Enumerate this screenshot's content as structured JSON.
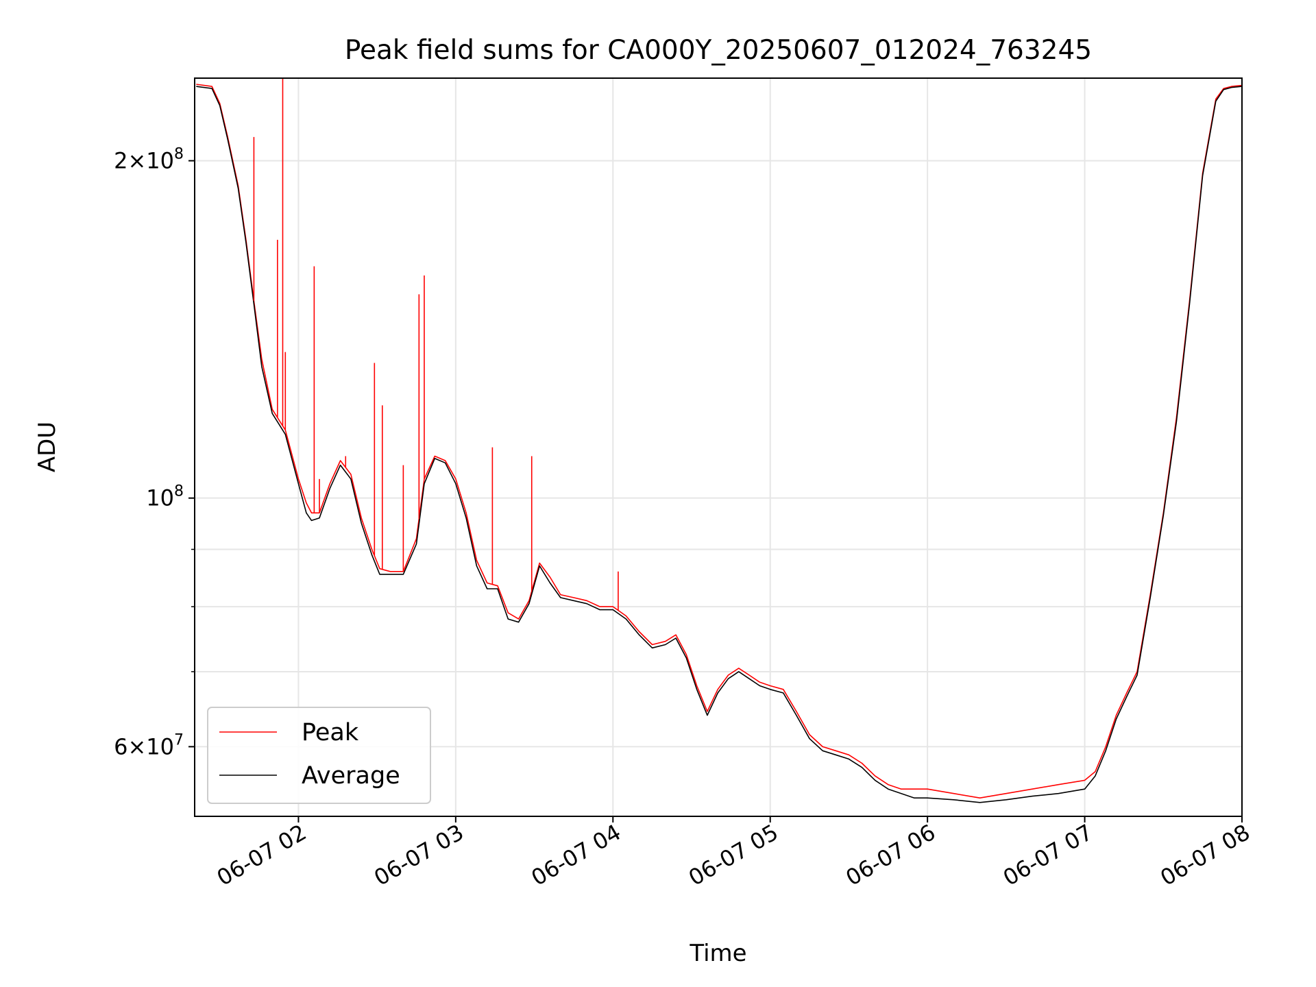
{
  "chart_data": {
    "type": "line",
    "title": "Peak field sums for CA000Y_20250607_012024_763245",
    "xlabel": "Time",
    "ylabel": "ADU",
    "yscale": "log",
    "xlim": [
      "2025-06-07 01:20:24",
      "2025-06-07 08:00:00"
    ],
    "ylim": [
      52000000,
      237000000
    ],
    "x_ticks": [
      {
        "value": "2025-06-07 02:00",
        "label": "06-07 02"
      },
      {
        "value": "2025-06-07 03:00",
        "label": "06-07 03"
      },
      {
        "value": "2025-06-07 04:00",
        "label": "06-07 04"
      },
      {
        "value": "2025-06-07 05:00",
        "label": "06-07 05"
      },
      {
        "value": "2025-06-07 06:00",
        "label": "06-07 06"
      },
      {
        "value": "2025-06-07 07:00",
        "label": "06-07 07"
      },
      {
        "value": "2025-06-07 08:00",
        "label": "06-07 08"
      }
    ],
    "y_ticks": [
      {
        "value": 200000000,
        "mant": "2",
        "exp": "8"
      },
      {
        "value": 100000000,
        "mant": "",
        "exp": "8"
      },
      {
        "value": 60000000,
        "mant": "6",
        "exp": "7"
      }
    ],
    "y_minor_ticks": [
      70000000,
      80000000,
      90000000
    ],
    "grid": true,
    "legend_position": "lower-left",
    "series": [
      {
        "name": "Peak",
        "color": "#ff0000",
        "x": [
          "2025-06-07 01:21",
          "2025-06-07 01:27",
          "2025-06-07 01:30",
          "2025-06-07 01:33",
          "2025-06-07 01:37",
          "2025-06-07 01:40",
          "2025-06-07 01:43",
          "2025-06-07 01:46",
          "2025-06-07 01:50",
          "2025-06-07 01:55",
          "2025-06-07 02:00",
          "2025-06-07 02:03",
          "2025-06-07 02:05",
          "2025-06-07 02:08",
          "2025-06-07 02:12",
          "2025-06-07 02:16",
          "2025-06-07 02:20",
          "2025-06-07 02:24",
          "2025-06-07 02:28",
          "2025-06-07 02:31",
          "2025-06-07 02:35",
          "2025-06-07 02:40",
          "2025-06-07 02:45",
          "2025-06-07 02:48",
          "2025-06-07 02:52",
          "2025-06-07 02:56",
          "2025-06-07 03:00",
          "2025-06-07 03:04",
          "2025-06-07 03:08",
          "2025-06-07 03:12",
          "2025-06-07 03:16",
          "2025-06-07 03:20",
          "2025-06-07 03:24",
          "2025-06-07 03:28",
          "2025-06-07 03:32",
          "2025-06-07 03:36",
          "2025-06-07 03:40",
          "2025-06-07 03:45",
          "2025-06-07 03:50",
          "2025-06-07 03:55",
          "2025-06-07 04:00",
          "2025-06-07 04:05",
          "2025-06-07 04:10",
          "2025-06-07 04:15",
          "2025-06-07 04:20",
          "2025-06-07 04:24",
          "2025-06-07 04:28",
          "2025-06-07 04:32",
          "2025-06-07 04:36",
          "2025-06-07 04:40",
          "2025-06-07 04:44",
          "2025-06-07 04:48",
          "2025-06-07 04:52",
          "2025-06-07 04:56",
          "2025-06-07 05:00",
          "2025-06-07 05:05",
          "2025-06-07 05:10",
          "2025-06-07 05:15",
          "2025-06-07 05:20",
          "2025-06-07 05:25",
          "2025-06-07 05:30",
          "2025-06-07 05:35",
          "2025-06-07 05:40",
          "2025-06-07 05:45",
          "2025-06-07 05:50",
          "2025-06-07 05:55",
          "2025-06-07 06:00",
          "2025-06-07 06:10",
          "2025-06-07 06:20",
          "2025-06-07 06:30",
          "2025-06-07 06:40",
          "2025-06-07 06:50",
          "2025-06-07 07:00",
          "2025-06-07 07:04",
          "2025-06-07 07:08",
          "2025-06-07 07:12",
          "2025-06-07 07:16",
          "2025-06-07 07:20",
          "2025-06-07 07:25",
          "2025-06-07 07:30",
          "2025-06-07 07:35",
          "2025-06-07 07:40",
          "2025-06-07 07:45",
          "2025-06-07 07:50",
          "2025-06-07 07:53",
          "2025-06-07 07:56",
          "2025-06-07 08:00"
        ],
        "y": [
          234000000,
          233000000,
          225000000,
          210000000,
          190000000,
          170000000,
          150000000,
          133000000,
          120000000,
          115000000,
          104000000,
          99000000,
          97000000,
          97000000,
          103000000,
          108000000,
          105000000,
          96000000,
          90000000,
          86500000,
          86000000,
          86000000,
          92000000,
          104000000,
          109000000,
          108000000,
          104000000,
          97000000,
          88000000,
          84000000,
          83500000,
          79000000,
          78000000,
          81000000,
          87500000,
          85000000,
          82000000,
          81500000,
          81000000,
          80000000,
          80000000,
          78500000,
          76000000,
          74000000,
          74500000,
          75500000,
          72500000,
          68000000,
          64500000,
          67500000,
          69500000,
          70500000,
          69500000,
          68500000,
          68000000,
          67500000,
          64500000,
          61500000,
          60000000,
          59500000,
          59000000,
          58000000,
          56500000,
          55500000,
          55000000,
          55000000,
          55000000,
          54500000,
          54000000,
          54500000,
          55000000,
          55500000,
          56000000,
          57000000,
          60000000,
          64000000,
          67000000,
          70000000,
          82000000,
          97000000,
          118000000,
          150000000,
          195000000,
          227000000,
          232000000,
          233000000,
          233500000
        ]
      },
      {
        "name": "Average",
        "color": "#000000",
        "x": [
          "2025-06-07 01:21",
          "2025-06-07 01:27",
          "2025-06-07 01:30",
          "2025-06-07 01:33",
          "2025-06-07 01:37",
          "2025-06-07 01:40",
          "2025-06-07 01:43",
          "2025-06-07 01:46",
          "2025-06-07 01:50",
          "2025-06-07 01:55",
          "2025-06-07 02:00",
          "2025-06-07 02:03",
          "2025-06-07 02:05",
          "2025-06-07 02:08",
          "2025-06-07 02:12",
          "2025-06-07 02:16",
          "2025-06-07 02:20",
          "2025-06-07 02:24",
          "2025-06-07 02:28",
          "2025-06-07 02:31",
          "2025-06-07 02:35",
          "2025-06-07 02:40",
          "2025-06-07 02:45",
          "2025-06-07 02:48",
          "2025-06-07 02:52",
          "2025-06-07 02:56",
          "2025-06-07 03:00",
          "2025-06-07 03:04",
          "2025-06-07 03:08",
          "2025-06-07 03:12",
          "2025-06-07 03:16",
          "2025-06-07 03:20",
          "2025-06-07 03:24",
          "2025-06-07 03:28",
          "2025-06-07 03:32",
          "2025-06-07 03:36",
          "2025-06-07 03:40",
          "2025-06-07 03:45",
          "2025-06-07 03:50",
          "2025-06-07 03:55",
          "2025-06-07 04:00",
          "2025-06-07 04:05",
          "2025-06-07 04:10",
          "2025-06-07 04:15",
          "2025-06-07 04:20",
          "2025-06-07 04:24",
          "2025-06-07 04:28",
          "2025-06-07 04:32",
          "2025-06-07 04:36",
          "2025-06-07 04:40",
          "2025-06-07 04:44",
          "2025-06-07 04:48",
          "2025-06-07 04:52",
          "2025-06-07 04:56",
          "2025-06-07 05:00",
          "2025-06-07 05:05",
          "2025-06-07 05:10",
          "2025-06-07 05:15",
          "2025-06-07 05:20",
          "2025-06-07 05:25",
          "2025-06-07 05:30",
          "2025-06-07 05:35",
          "2025-06-07 05:40",
          "2025-06-07 05:45",
          "2025-06-07 05:50",
          "2025-06-07 05:55",
          "2025-06-07 06:00",
          "2025-06-07 06:10",
          "2025-06-07 06:20",
          "2025-06-07 06:30",
          "2025-06-07 06:40",
          "2025-06-07 06:50",
          "2025-06-07 07:00",
          "2025-06-07 07:04",
          "2025-06-07 07:08",
          "2025-06-07 07:12",
          "2025-06-07 07:16",
          "2025-06-07 07:20",
          "2025-06-07 07:25",
          "2025-06-07 07:30",
          "2025-06-07 07:35",
          "2025-06-07 07:40",
          "2025-06-07 07:45",
          "2025-06-07 07:50",
          "2025-06-07 07:53",
          "2025-06-07 07:56",
          "2025-06-07 08:00"
        ],
        "y": [
          233000000,
          232000000,
          224000000,
          209000000,
          189000000,
          169000000,
          149000000,
          131000000,
          119000000,
          114000000,
          103000000,
          97000000,
          95500000,
          96000000,
          102000000,
          107000000,
          104000000,
          95000000,
          89000000,
          85500000,
          85500000,
          85500000,
          91000000,
          103000000,
          108500000,
          107500000,
          103000000,
          96000000,
          87000000,
          83000000,
          83000000,
          78000000,
          77500000,
          80500000,
          87000000,
          84000000,
          81500000,
          81000000,
          80500000,
          79500000,
          79500000,
          78000000,
          75500000,
          73500000,
          74000000,
          75000000,
          72000000,
          67500000,
          64000000,
          67000000,
          69000000,
          70000000,
          69000000,
          68000000,
          67500000,
          67000000,
          64000000,
          61000000,
          59500000,
          59000000,
          58500000,
          57500000,
          56000000,
          55000000,
          54500000,
          54000000,
          54000000,
          53800000,
          53500000,
          53800000,
          54200000,
          54500000,
          55000000,
          56500000,
          59500000,
          63500000,
          66500000,
          69500000,
          81500000,
          96500000,
          117000000,
          149000000,
          194000000,
          226000000,
          231500000,
          232500000,
          233000000
        ]
      }
    ],
    "spikes": [
      {
        "series": "Peak",
        "x": "2025-06-07 01:43",
        "y": 210000000
      },
      {
        "series": "Peak",
        "x": "2025-06-07 01:54",
        "y": 237000000
      },
      {
        "series": "Peak",
        "x": "2025-06-07 01:55",
        "y": 135000000
      },
      {
        "series": "Peak",
        "x": "2025-06-07 01:52",
        "y": 170000000
      },
      {
        "series": "Peak",
        "x": "2025-06-07 02:06",
        "y": 161000000
      },
      {
        "series": "Peak",
        "x": "2025-06-07 02:08",
        "y": 104000000
      },
      {
        "series": "Peak",
        "x": "2025-06-07 02:18",
        "y": 109000000
      },
      {
        "series": "Peak",
        "x": "2025-06-07 02:29",
        "y": 132000000
      },
      {
        "series": "Peak",
        "x": "2025-06-07 02:32",
        "y": 121000000
      },
      {
        "series": "Peak",
        "x": "2025-06-07 02:40",
        "y": 107000000
      },
      {
        "series": "Peak",
        "x": "2025-06-07 02:46",
        "y": 152000000
      },
      {
        "series": "Peak",
        "x": "2025-06-07 02:48",
        "y": 158000000
      },
      {
        "series": "Peak",
        "x": "2025-06-07 03:14",
        "y": 111000000
      },
      {
        "series": "Peak",
        "x": "2025-06-07 03:29",
        "y": 109000000
      },
      {
        "series": "Peak",
        "x": "2025-06-07 04:02",
        "y": 86000000
      }
    ]
  },
  "legend": {
    "items": [
      {
        "label": "Peak",
        "color": "#ff0000"
      },
      {
        "label": "Average",
        "color": "#000000"
      }
    ]
  }
}
